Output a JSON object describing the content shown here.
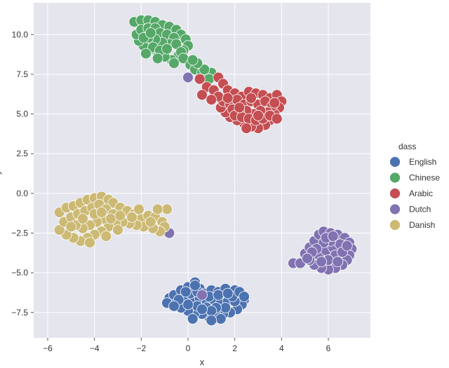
{
  "chart_data": {
    "type": "scatter",
    "xlabel": "x",
    "ylabel": "y",
    "xlim": [
      -6.6,
      7.8
    ],
    "ylim": [
      -9.1,
      12.0
    ],
    "xticks": [
      -6,
      -4,
      -2,
      0,
      2,
      4,
      6
    ],
    "xtick_labels": [
      "−6",
      "−4",
      "−2",
      "0",
      "2",
      "4",
      "6"
    ],
    "yticks": [
      -7.5,
      -5.0,
      -2.5,
      0.0,
      2.5,
      5.0,
      7.5,
      10.0
    ],
    "ytick_labels": [
      "−7.5",
      "−5.0",
      "−2.5",
      "0.0",
      "2.5",
      "5.0",
      "7.5",
      "10.0"
    ],
    "grid": true,
    "background": "#e5e5ee",
    "legend": {
      "title": "dass",
      "placement": "right",
      "entries": [
        "English",
        "Chinese",
        "Arabic",
        "Dutch",
        "Danish"
      ]
    },
    "series": [
      {
        "name": "English",
        "color": "#4c72b0",
        "points": [
          [
            -0.8,
            -6.6
          ],
          [
            -0.6,
            -6.4
          ],
          [
            -0.3,
            -6.1
          ],
          [
            0.0,
            -5.9
          ],
          [
            0.3,
            -5.6
          ],
          [
            0.5,
            -6.0
          ],
          [
            0.7,
            -6.3
          ],
          [
            1.0,
            -6.1
          ],
          [
            1.3,
            -6.2
          ],
          [
            1.6,
            -6.0
          ],
          [
            2.0,
            -6.1
          ],
          [
            2.2,
            -6.4
          ],
          [
            2.4,
            -6.7
          ],
          [
            2.3,
            -7.0
          ],
          [
            2.1,
            -7.3
          ],
          [
            1.8,
            -7.5
          ],
          [
            1.5,
            -7.6
          ],
          [
            1.2,
            -7.7
          ],
          [
            0.9,
            -7.8
          ],
          [
            0.6,
            -7.6
          ],
          [
            0.3,
            -7.5
          ],
          [
            0.0,
            -7.4
          ],
          [
            -0.3,
            -7.2
          ],
          [
            -0.6,
            -7.0
          ],
          [
            -0.9,
            -6.9
          ],
          [
            -0.2,
            -6.6
          ],
          [
            0.2,
            -6.8
          ],
          [
            0.5,
            -6.6
          ],
          [
            0.8,
            -6.9
          ],
          [
            1.1,
            -6.7
          ],
          [
            1.4,
            -6.9
          ],
          [
            1.7,
            -6.8
          ],
          [
            2.0,
            -6.8
          ],
          [
            1.6,
            -7.2
          ],
          [
            1.2,
            -7.2
          ],
          [
            0.8,
            -7.2
          ],
          [
            0.4,
            -7.1
          ],
          [
            0.0,
            -7.0
          ],
          [
            -0.4,
            -6.7
          ],
          [
            0.1,
            -6.3
          ],
          [
            0.4,
            -6.2
          ],
          [
            0.9,
            -6.5
          ],
          [
            1.3,
            -6.4
          ],
          [
            1.9,
            -6.5
          ],
          [
            1.0,
            -7.4
          ],
          [
            0.6,
            -7.3
          ],
          [
            -0.1,
            -6.2
          ],
          [
            0.2,
            -7.9
          ],
          [
            1.4,
            -7.9
          ],
          [
            2.2,
            -6.2
          ],
          [
            -0.6,
            -7.1
          ],
          [
            1.7,
            -6.3
          ],
          [
            0.3,
            -5.8
          ],
          [
            2.4,
            -6.5
          ],
          [
            1.0,
            -8.0
          ]
        ]
      },
      {
        "name": "Chinese",
        "color": "#55a868",
        "points": [
          [
            -2.3,
            10.8
          ],
          [
            -2.0,
            10.9
          ],
          [
            -1.7,
            10.9
          ],
          [
            -1.4,
            10.8
          ],
          [
            -1.1,
            10.6
          ],
          [
            -0.8,
            10.5
          ],
          [
            -0.5,
            10.3
          ],
          [
            -0.3,
            10.0
          ],
          [
            -0.1,
            9.7
          ],
          [
            0.0,
            9.3
          ],
          [
            -0.2,
            9.0
          ],
          [
            -0.4,
            8.7
          ],
          [
            -0.7,
            8.4
          ],
          [
            -1.0,
            8.6
          ],
          [
            -1.3,
            8.9
          ],
          [
            -1.6,
            9.1
          ],
          [
            -1.9,
            9.3
          ],
          [
            -2.1,
            9.6
          ],
          [
            -2.2,
            10.0
          ],
          [
            -2.0,
            10.3
          ],
          [
            -1.7,
            10.4
          ],
          [
            -1.4,
            10.4
          ],
          [
            -1.2,
            10.1
          ],
          [
            -0.9,
            10.0
          ],
          [
            -0.6,
            9.8
          ],
          [
            -0.8,
            9.4
          ],
          [
            -1.1,
            9.5
          ],
          [
            -1.4,
            9.7
          ],
          [
            -1.7,
            9.8
          ],
          [
            -1.5,
            9.2
          ],
          [
            -1.2,
            9.0
          ],
          [
            -0.9,
            9.1
          ],
          [
            -0.5,
            9.4
          ],
          [
            -0.3,
            8.9
          ],
          [
            -1.9,
            9.8
          ],
          [
            -1.6,
            10.1
          ],
          [
            -0.2,
            8.5
          ],
          [
            0.1,
            8.1
          ],
          [
            0.3,
            7.8
          ],
          [
            0.6,
            7.6
          ],
          [
            0.8,
            7.4
          ],
          [
            1.0,
            7.6
          ],
          [
            0.7,
            7.8
          ],
          [
            0.4,
            8.2
          ],
          [
            -0.6,
            8.2
          ],
          [
            -1.8,
            8.8
          ],
          [
            -1.3,
            8.5
          ],
          [
            0.2,
            8.4
          ],
          [
            0.9,
            7.2
          ]
        ]
      },
      {
        "name": "Arabic",
        "color": "#c44e52",
        "points": [
          [
            1.3,
            7.3
          ],
          [
            1.5,
            6.9
          ],
          [
            1.7,
            6.5
          ],
          [
            2.0,
            6.3
          ],
          [
            2.3,
            6.1
          ],
          [
            2.6,
            6.4
          ],
          [
            2.9,
            6.3
          ],
          [
            3.2,
            6.2
          ],
          [
            3.5,
            6.0
          ],
          [
            3.8,
            6.2
          ],
          [
            4.0,
            5.8
          ],
          [
            3.9,
            5.4
          ],
          [
            3.7,
            5.0
          ],
          [
            3.5,
            4.6
          ],
          [
            3.3,
            4.3
          ],
          [
            3.0,
            4.1
          ],
          [
            2.7,
            4.2
          ],
          [
            2.4,
            4.4
          ],
          [
            2.1,
            4.6
          ],
          [
            1.8,
            4.8
          ],
          [
            1.6,
            5.1
          ],
          [
            1.4,
            5.4
          ],
          [
            1.5,
            5.8
          ],
          [
            1.8,
            5.6
          ],
          [
            2.1,
            5.9
          ],
          [
            2.4,
            5.6
          ],
          [
            2.7,
            5.8
          ],
          [
            3.0,
            5.6
          ],
          [
            3.3,
            5.8
          ],
          [
            3.6,
            5.5
          ],
          [
            3.4,
            5.1
          ],
          [
            3.1,
            5.2
          ],
          [
            2.8,
            5.0
          ],
          [
            2.5,
            5.2
          ],
          [
            2.2,
            5.1
          ],
          [
            1.9,
            5.3
          ],
          [
            2.0,
            4.9
          ],
          [
            2.3,
            4.8
          ],
          [
            2.6,
            4.7
          ],
          [
            2.9,
            4.6
          ],
          [
            3.2,
            4.7
          ],
          [
            3.5,
            4.9
          ],
          [
            0.5,
            7.2
          ],
          [
            0.8,
            6.7
          ],
          [
            1.1,
            6.5
          ],
          [
            1.3,
            6.1
          ],
          [
            0.6,
            6.2
          ],
          [
            1.0,
            5.9
          ],
          [
            3.7,
            5.7
          ],
          [
            2.7,
            6.0
          ],
          [
            2.2,
            5.4
          ],
          [
            3.0,
            4.9
          ],
          [
            1.7,
            6.0
          ],
          [
            3.8,
            4.7
          ],
          [
            2.5,
            4.1
          ]
        ]
      },
      {
        "name": "Dutch",
        "color": "#8172b2",
        "points": [
          [
            0.0,
            7.3
          ],
          [
            -0.8,
            -2.5
          ],
          [
            0.6,
            -6.4
          ],
          [
            4.5,
            -4.4
          ],
          [
            4.8,
            -4.4
          ],
          [
            5.0,
            -3.8
          ],
          [
            5.2,
            -3.4
          ],
          [
            5.4,
            -3.0
          ],
          [
            5.6,
            -2.6
          ],
          [
            5.8,
            -2.4
          ],
          [
            6.1,
            -2.5
          ],
          [
            6.4,
            -2.6
          ],
          [
            6.7,
            -2.8
          ],
          [
            6.9,
            -3.1
          ],
          [
            7.0,
            -3.5
          ],
          [
            6.9,
            -3.9
          ],
          [
            6.8,
            -4.2
          ],
          [
            6.6,
            -4.5
          ],
          [
            6.3,
            -4.7
          ],
          [
            6.0,
            -4.8
          ],
          [
            5.7,
            -4.7
          ],
          [
            5.4,
            -4.5
          ],
          [
            5.2,
            -4.2
          ],
          [
            5.6,
            -3.9
          ],
          [
            5.9,
            -3.6
          ],
          [
            6.2,
            -3.4
          ],
          [
            6.5,
            -3.2
          ],
          [
            6.1,
            -3.0
          ],
          [
            5.8,
            -3.1
          ],
          [
            5.5,
            -3.5
          ],
          [
            6.3,
            -3.9
          ],
          [
            6.6,
            -3.7
          ],
          [
            6.0,
            -4.2
          ],
          [
            5.7,
            -4.3
          ],
          [
            6.4,
            -4.3
          ],
          [
            5.3,
            -3.7
          ],
          [
            6.8,
            -3.3
          ],
          [
            5.9,
            -2.8
          ],
          [
            6.2,
            -2.7
          ],
          [
            5.1,
            -4.1
          ]
        ]
      },
      {
        "name": "Danish",
        "color": "#ccb974",
        "points": [
          [
            -5.5,
            -1.2
          ],
          [
            -5.2,
            -0.9
          ],
          [
            -4.9,
            -0.8
          ],
          [
            -4.6,
            -0.6
          ],
          [
            -4.3,
            -0.4
          ],
          [
            -4.0,
            -0.3
          ],
          [
            -3.7,
            -0.2
          ],
          [
            -3.4,
            -0.4
          ],
          [
            -3.2,
            -0.6
          ],
          [
            -2.9,
            -0.9
          ],
          [
            -2.6,
            -1.1
          ],
          [
            -2.3,
            -1.3
          ],
          [
            -2.0,
            -1.6
          ],
          [
            -1.7,
            -1.4
          ],
          [
            -1.4,
            -1.5
          ],
          [
            -1.1,
            -1.8
          ],
          [
            -1.0,
            -2.1
          ],
          [
            -1.2,
            -2.4
          ],
          [
            -1.5,
            -2.2
          ],
          [
            -1.9,
            -2.1
          ],
          [
            -2.2,
            -2.0
          ],
          [
            -2.5,
            -1.9
          ],
          [
            -2.8,
            -1.8
          ],
          [
            -3.1,
            -1.9
          ],
          [
            -3.4,
            -2.1
          ],
          [
            -3.7,
            -2.4
          ],
          [
            -4.0,
            -2.6
          ],
          [
            -4.3,
            -2.8
          ],
          [
            -4.6,
            -3.0
          ],
          [
            -4.9,
            -2.8
          ],
          [
            -5.2,
            -2.6
          ],
          [
            -5.5,
            -2.3
          ],
          [
            -5.3,
            -1.8
          ],
          [
            -5.0,
            -1.5
          ],
          [
            -4.7,
            -1.3
          ],
          [
            -4.4,
            -1.1
          ],
          [
            -4.1,
            -0.9
          ],
          [
            -3.8,
            -0.7
          ],
          [
            -3.5,
            -1.0
          ],
          [
            -3.2,
            -1.3
          ],
          [
            -3.6,
            -1.6
          ],
          [
            -3.9,
            -1.8
          ],
          [
            -4.2,
            -2.0
          ],
          [
            -4.5,
            -2.2
          ],
          [
            -4.8,
            -2.0
          ],
          [
            -4.5,
            -1.6
          ],
          [
            -4.0,
            -1.3
          ],
          [
            -3.7,
            -1.2
          ],
          [
            -3.3,
            -1.6
          ],
          [
            -2.9,
            -1.4
          ],
          [
            -2.4,
            -1.5
          ],
          [
            -1.6,
            -1.8
          ],
          [
            -0.9,
            -1.0
          ],
          [
            -1.3,
            -1.0
          ],
          [
            -4.2,
            -3.1
          ],
          [
            -3.5,
            -2.7
          ],
          [
            -5.0,
            -2.1
          ],
          [
            -3.0,
            -2.3
          ],
          [
            -2.1,
            -1.0
          ]
        ]
      }
    ]
  }
}
